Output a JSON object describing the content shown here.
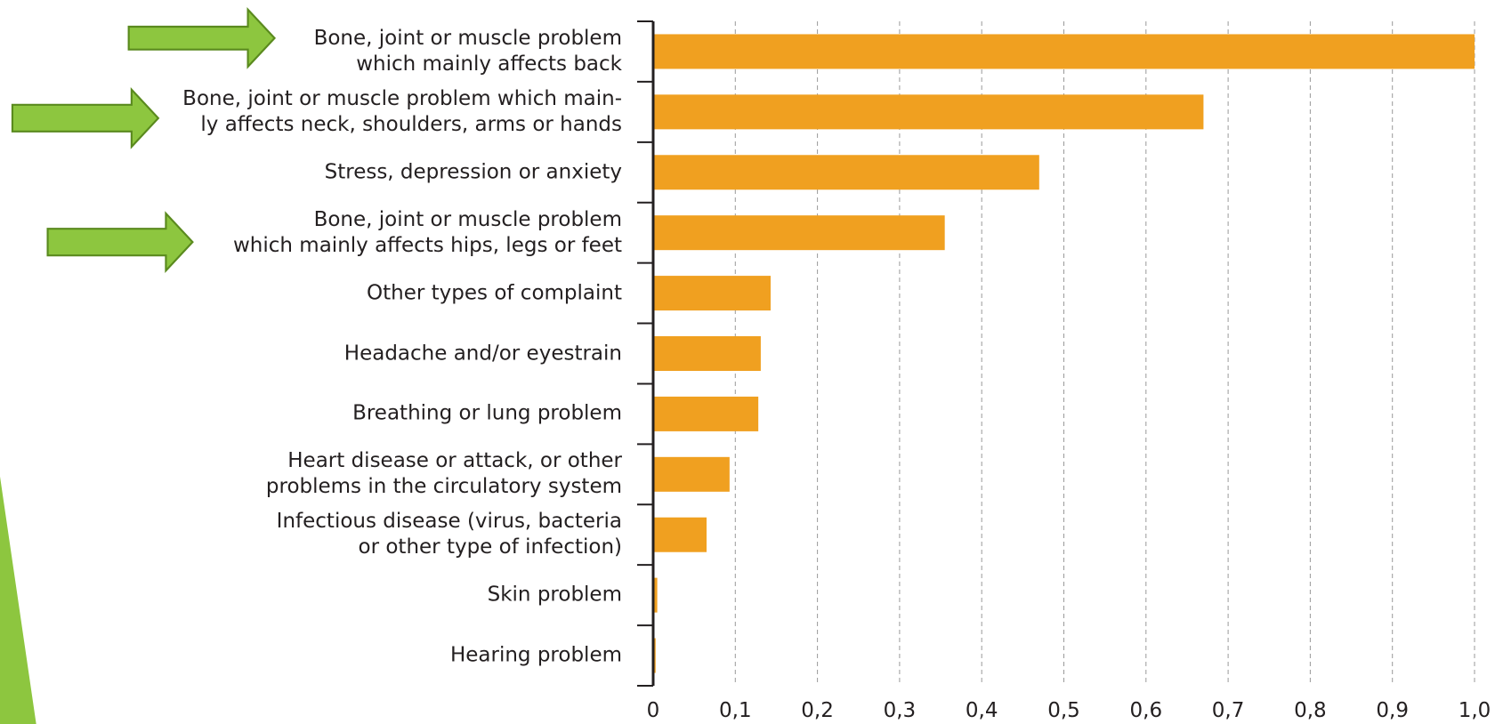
{
  "chart_data": {
    "type": "barh",
    "categories": [
      "Bone, joint or muscle problem\nwhich mainly affects back",
      "Bone, joint or muscle problem which main-\nly affects neck, shoulders, arms or hands",
      "Stress, depression or anxiety",
      "Bone, joint or muscle problem\nwhich mainly affects hips, legs or feet",
      "Other types of complaint",
      "Headache and/or eyestrain",
      "Breathing or lung problem",
      "Heart disease or attack, or other\nproblems in the circulatory system",
      "Infectious disease (virus, bacteria\nor other type of infection)",
      "Skin problem",
      "Hearing problem"
    ],
    "values": [
      1.0,
      0.67,
      0.47,
      0.355,
      0.143,
      0.131,
      0.128,
      0.093,
      0.065,
      0.005,
      0.003
    ],
    "color": "#f0a020",
    "xlim": [
      0,
      1.0
    ],
    "xticks": [
      0,
      {
        "value": 0.1,
        "label": "0,1"
      },
      {
        "value": 0.2,
        "label": "0,2"
      },
      {
        "value": 0.3,
        "label": "0,3"
      },
      {
        "value": 0.4,
        "label": "0,4"
      },
      {
        "value": 0.5,
        "label": "0,5"
      },
      {
        "value": 0.6,
        "label": "0,6"
      },
      {
        "value": 0.7,
        "label": "0,7"
      },
      {
        "value": 0.8,
        "label": "0,8"
      },
      {
        "value": 0.9,
        "label": "0,9"
      },
      {
        "value": 1.0,
        "label": "1,0"
      }
    ],
    "grid": true
  }
}
